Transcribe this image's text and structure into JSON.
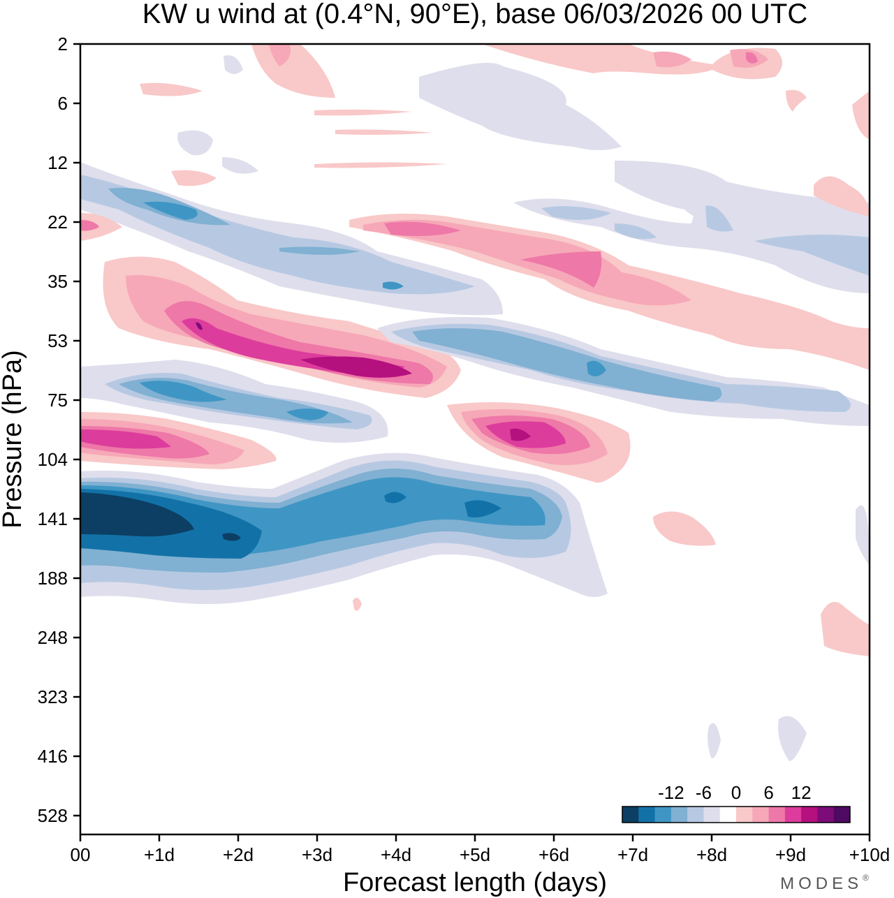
{
  "chart_data": {
    "type": "heatmap",
    "title": "KW u wind at (0.4°N, 90°E),  base 06/03/2026  00 UTC",
    "xlabel": "Forecast length (days)",
    "ylabel": "Pressure (hPa)",
    "x_ticks": [
      "00",
      "+1d",
      "+2d",
      "+3d",
      "+4d",
      "+5d",
      "+6d",
      "+7d",
      "+8d",
      "+9d",
      "+10d"
    ],
    "y_ticks": [
      "2",
      "6",
      "12",
      "22",
      "35",
      "53",
      "75",
      "104",
      "141",
      "188",
      "248",
      "323",
      "416",
      "528"
    ],
    "xlim_days": [
      0,
      10
    ],
    "colorbar": {
      "tick_labels": [
        "-12",
        "-6",
        "0",
        "6",
        "12"
      ],
      "bins": [
        -15,
        -12,
        -9,
        -6,
        -3,
        0,
        3,
        6,
        9,
        12,
        15
      ],
      "colors": [
        "#0c3f63",
        "#1272a8",
        "#3f96c4",
        "#80b0d2",
        "#b7c9e2",
        "#dfdeec",
        "#ffffff",
        "#f9c8c8",
        "#f6a8b8",
        "#ee78a8",
        "#dc3c9c",
        "#b4107e",
        "#7c0c78",
        "#4e0a62"
      ]
    },
    "features": [
      {
        "sign": "negative",
        "peak_u": -13.5,
        "pressure": "141-160 hPa",
        "days": "0 to +6.5",
        "note": "strongest easterly band, descending"
      },
      {
        "sign": "negative",
        "peak_u": -9,
        "pressure": "75-90 hPa",
        "days": "0 to +3.5"
      },
      {
        "sign": "negative",
        "peak_u": -9,
        "pressure": "53-75 hPa",
        "days": "+4 to +10"
      },
      {
        "sign": "negative",
        "peak_u": -7,
        "pressure": "15-30 hPa",
        "days": "0 to +4.5"
      },
      {
        "sign": "positive",
        "peak_u": 12.5,
        "pressure": "53-70 hPa",
        "days": "+0.5 to +4.5",
        "note": "strongest westerly band"
      },
      {
        "sign": "positive",
        "peak_u": 11,
        "pressure": "90-100 hPa",
        "days": "+5 to +6.5"
      },
      {
        "sign": "positive",
        "peak_u": 9,
        "pressure": "90-104 hPa",
        "days": "0 to +2.5"
      },
      {
        "sign": "positive",
        "peak_u": 8,
        "pressure": "22-35 hPa",
        "days": "+3.5 to +6.5"
      },
      {
        "sign": "positive",
        "peak_u": 5,
        "pressure": "141-160 hPa",
        "days": "+7.5 to +8"
      },
      {
        "sign": "positive",
        "peak_u": 4,
        "pressure": "200-248 hPa",
        "days": "+9.5 to +10"
      }
    ]
  },
  "logo": {
    "text": "MODES",
    "mark": "®"
  }
}
